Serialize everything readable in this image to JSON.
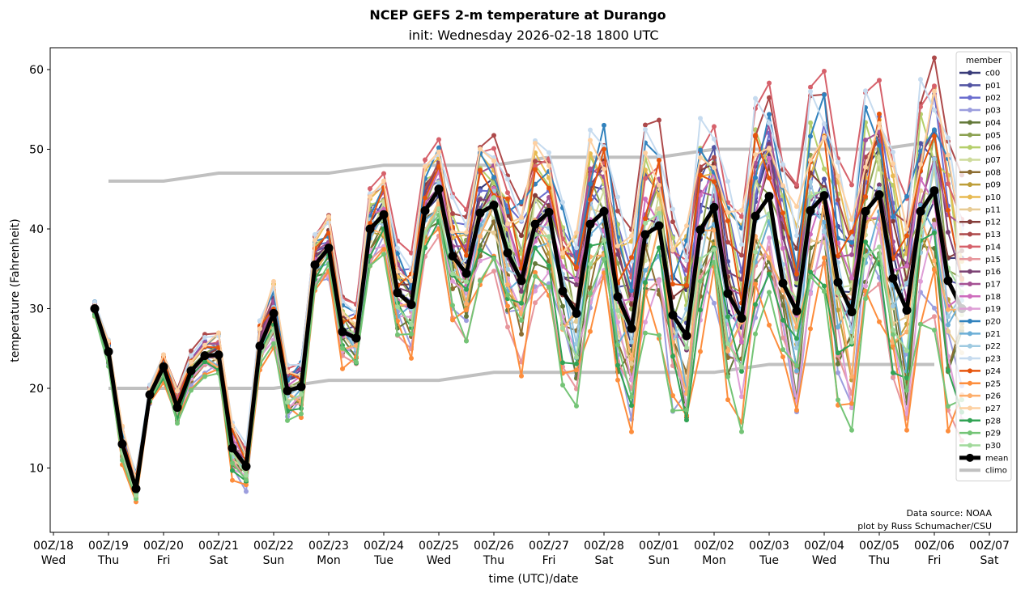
{
  "chart_data": {
    "type": "line",
    "title": "NCEP GEFS 2-m temperature at Durango",
    "subtitle": "init: Wednesday 2026-02-18 1800 UTC",
    "xlabel": "time (UTC)/date",
    "ylabel": "temperature (Fahrenheit)",
    "ylim": [
      2,
      62.5
    ],
    "yticks": [
      10,
      20,
      30,
      40,
      50,
      60
    ],
    "xlim_days_from_00Z18": [
      -0.03,
      17.55
    ],
    "time_step_hours": 6,
    "first_point_days_from_00Z18": 0.75,
    "xticks": [
      {
        "day": 0,
        "top": "00Z/18",
        "bottom": "Wed"
      },
      {
        "day": 1,
        "top": "00Z/19",
        "bottom": "Thu"
      },
      {
        "day": 2,
        "top": "00Z/20",
        "bottom": "Fri"
      },
      {
        "day": 3,
        "top": "00Z/21",
        "bottom": "Sat"
      },
      {
        "day": 4,
        "top": "00Z/22",
        "bottom": "Sun"
      },
      {
        "day": 5,
        "top": "00Z/23",
        "bottom": "Mon"
      },
      {
        "day": 6,
        "top": "00Z/24",
        "bottom": "Tue"
      },
      {
        "day": 7,
        "top": "00Z/25",
        "bottom": "Wed"
      },
      {
        "day": 8,
        "top": "00Z/26",
        "bottom": "Thu"
      },
      {
        "day": 9,
        "top": "00Z/27",
        "bottom": "Fri"
      },
      {
        "day": 10,
        "top": "00Z/28",
        "bottom": "Sat"
      },
      {
        "day": 11,
        "top": "00Z/01",
        "bottom": "Sun"
      },
      {
        "day": 12,
        "top": "00Z/02",
        "bottom": "Mon"
      },
      {
        "day": 13,
        "top": "00Z/03",
        "bottom": "Tue"
      },
      {
        "day": 14,
        "top": "00Z/04",
        "bottom": "Wed"
      },
      {
        "day": 15,
        "top": "00Z/05",
        "bottom": "Thu"
      },
      {
        "day": 16,
        "top": "00Z/06",
        "bottom": "Fri"
      },
      {
        "day": 17,
        "top": "00Z/07",
        "bottom": "Sat"
      }
    ],
    "grid": false,
    "legend": {
      "title": "member",
      "placement": "top-right"
    },
    "mean": {
      "name": "mean",
      "color": "#000000",
      "values": [
        30.0,
        24.6,
        13.0,
        7.4,
        19.2,
        22.7,
        17.6,
        22.2,
        24.1,
        24.2,
        12.5,
        10.2,
        25.3,
        29.4,
        19.7,
        20.2,
        35.5,
        37.6,
        27.1,
        26.3,
        40.0,
        41.8,
        32.0,
        30.5,
        42.3,
        45.0,
        36.6,
        34.4,
        42.0,
        43.0,
        37.0,
        33.5,
        40.6,
        42.1,
        32.2,
        29.4,
        40.6,
        42.2,
        31.5,
        27.5,
        39.3,
        40.4,
        29.2,
        26.6,
        39.9,
        42.7,
        31.9,
        28.8,
        41.6,
        44.1,
        33.2,
        29.7,
        42.3,
        44.2,
        33.3,
        29.6,
        42.2,
        44.3,
        33.8,
        29.8,
        42.2,
        44.8,
        33.5,
        30.0
      ]
    },
    "climo": {
      "name": "climo",
      "color": "#c0c0c0",
      "high": {
        "days": [
          1,
          2,
          3,
          5,
          6,
          8,
          9,
          11,
          12,
          15,
          16
        ],
        "values": [
          46,
          46,
          47,
          47,
          48,
          48,
          49,
          49,
          50,
          50,
          51
        ]
      },
      "low": {
        "days": [
          1,
          4,
          5,
          7,
          8,
          12,
          13,
          16
        ],
        "values": [
          20,
          20,
          21,
          21,
          22,
          22,
          23,
          23
        ]
      }
    },
    "members": [
      {
        "name": "c00",
        "color": "#393b79",
        "spread_factor": 0.15
      },
      {
        "name": "p01",
        "color": "#5254a3",
        "spread_factor": 0.35
      },
      {
        "name": "p02",
        "color": "#6b6ecf",
        "spread_factor": 0.55
      },
      {
        "name": "p03",
        "color": "#9c9ede",
        "spread_factor": -0.75
      },
      {
        "name": "p04",
        "color": "#637939",
        "spread_factor": -0.55
      },
      {
        "name": "p05",
        "color": "#8ca252",
        "spread_factor": 0.25
      },
      {
        "name": "p06",
        "color": "#b5cf6b",
        "spread_factor": 0.6
      },
      {
        "name": "p07",
        "color": "#cedb9c",
        "spread_factor": 0.05
      },
      {
        "name": "p08",
        "color": "#8c6d31",
        "spread_factor": -0.45
      },
      {
        "name": "p09",
        "color": "#bd9e39",
        "spread_factor": -0.35
      },
      {
        "name": "p10",
        "color": "#e7ba52",
        "spread_factor": 0.7
      },
      {
        "name": "p11",
        "color": "#e7cb94",
        "spread_factor": -0.15
      },
      {
        "name": "p12",
        "color": "#843c39",
        "spread_factor": 0.3
      },
      {
        "name": "p13",
        "color": "#ad494a",
        "spread_factor": 0.9
      },
      {
        "name": "p14",
        "color": "#d6616b",
        "spread_factor": 0.95
      },
      {
        "name": "p15",
        "color": "#e7969c",
        "spread_factor": -0.85
      },
      {
        "name": "p16",
        "color": "#7b4173",
        "spread_factor": 0.2
      },
      {
        "name": "p17",
        "color": "#a55194",
        "spread_factor": 0.4
      },
      {
        "name": "p18",
        "color": "#ce6dbd",
        "spread_factor": 0.1
      },
      {
        "name": "p19",
        "color": "#de9ed6",
        "spread_factor": -0.65
      },
      {
        "name": "p20",
        "color": "#3182bd",
        "spread_factor": 0.75
      },
      {
        "name": "p21",
        "color": "#6baed6",
        "spread_factor": -0.25
      },
      {
        "name": "p22",
        "color": "#9ecae1",
        "spread_factor": -0.05
      },
      {
        "name": "p23",
        "color": "#c6dbef",
        "spread_factor": 1.0
      },
      {
        "name": "p24",
        "color": "#e6550d",
        "spread_factor": 0.5
      },
      {
        "name": "p25",
        "color": "#fd8d3c",
        "spread_factor": -1.0
      },
      {
        "name": "p26",
        "color": "#fdae6b",
        "spread_factor": -0.3
      },
      {
        "name": "p27",
        "color": "#fdd0a2",
        "spread_factor": 0.8
      },
      {
        "name": "p28",
        "color": "#31a354",
        "spread_factor": -0.6
      },
      {
        "name": "p29",
        "color": "#74c476",
        "spread_factor": -0.9
      },
      {
        "name": "p30",
        "color": "#a1d99b",
        "spread_factor": -0.2
      }
    ],
    "ensemble_spread_halfwidth": [
      0.8,
      1.5,
      2.0,
      1.8,
      1.2,
      1.5,
      2.0,
      2.0,
      2.2,
      2.5,
      3.0,
      3.0,
      3.0,
      3.5,
      3.0,
      3.0,
      3.5,
      3.5,
      3.5,
      3.5,
      4.0,
      4.0,
      5.0,
      5.0,
      5.0,
      5.0,
      6.5,
      7.0,
      7.0,
      7.0,
      8.0,
      9.0,
      9.0,
      9.0,
      9.5,
      10.0,
      10.0,
      10.0,
      10.5,
      10.5,
      11.0,
      11.0,
      11.0,
      12.0,
      11.5,
      11.0,
      11.5,
      12.0,
      12.0,
      12.0,
      12.0,
      12.5,
      12.0,
      12.0,
      12.0,
      12.5,
      12.0,
      12.0,
      12.5,
      13.0,
      13.0,
      14.0,
      14.0,
      14.0
    ],
    "annotation": [
      "Data source: NOAA",
      "plot by Russ Schumacher/CSU"
    ]
  }
}
